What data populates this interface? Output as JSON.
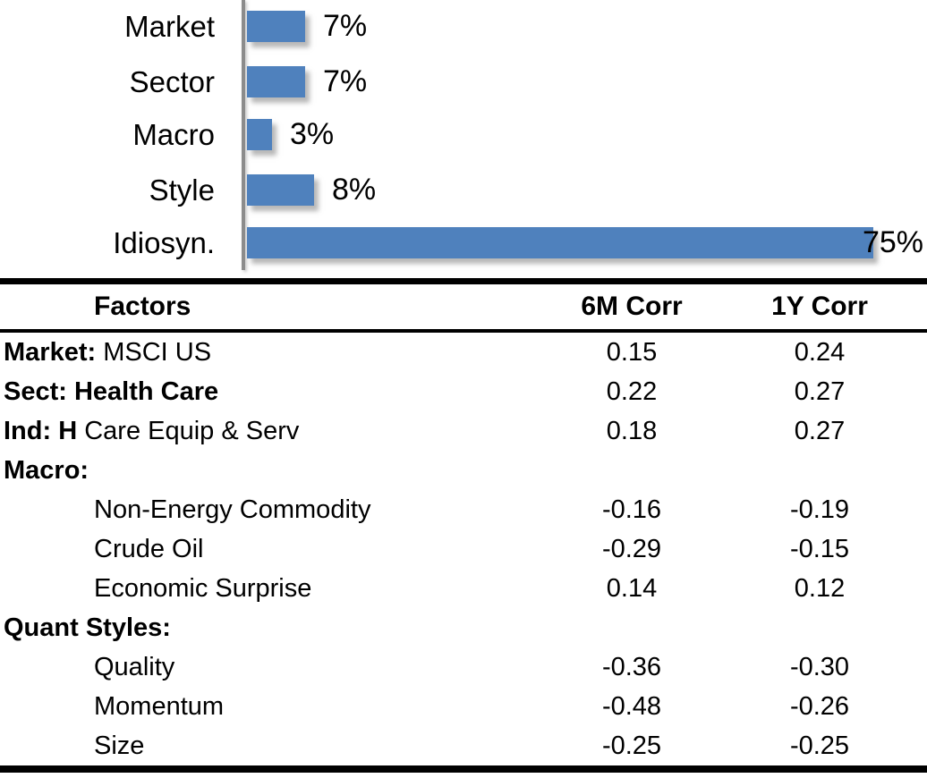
{
  "chart_data": [
    {
      "type": "bar",
      "orientation": "horizontal",
      "title": "",
      "categories": [
        "Market",
        "Sector",
        "Macro",
        "Style",
        "Idiosyn."
      ],
      "values": [
        7,
        7,
        3,
        8,
        75
      ],
      "value_labels": [
        "7%",
        "7%",
        "3%",
        "8%",
        "75%"
      ],
      "xlim": [
        0,
        80
      ],
      "grid": false,
      "legend": false,
      "bar_color": "#4F81BD",
      "axis_color": "#8C8C8C"
    },
    {
      "type": "table",
      "columns": [
        "Factors",
        "6M Corr",
        "1Y Corr"
      ],
      "rows": [
        {
          "label_bold": "Market:",
          "label_rest": " MSCI US",
          "indent": false,
          "corr_6m": "0.15",
          "corr_1y": "0.24"
        },
        {
          "label_bold": "Sect: Health Care",
          "label_rest": "",
          "indent": false,
          "corr_6m": "0.22",
          "corr_1y": "0.27"
        },
        {
          "label_bold": "Ind: H",
          "label_rest": " Care Equip & Serv",
          "indent": false,
          "corr_6m": "0.18",
          "corr_1y": "0.27"
        },
        {
          "label_bold": "Macro:",
          "label_rest": "",
          "indent": false,
          "corr_6m": "",
          "corr_1y": ""
        },
        {
          "label_bold": "",
          "label_rest": "Non-Energy Commodity",
          "indent": true,
          "corr_6m": "-0.16",
          "corr_1y": "-0.19"
        },
        {
          "label_bold": "",
          "label_rest": "Crude Oil",
          "indent": true,
          "corr_6m": "-0.29",
          "corr_1y": "-0.15"
        },
        {
          "label_bold": "",
          "label_rest": "Economic Surprise",
          "indent": true,
          "corr_6m": "0.14",
          "corr_1y": "0.12"
        },
        {
          "label_bold": "Quant Styles:",
          "label_rest": "",
          "indent": false,
          "corr_6m": "",
          "corr_1y": ""
        },
        {
          "label_bold": "",
          "label_rest": "Quality",
          "indent": true,
          "corr_6m": "-0.36",
          "corr_1y": "-0.30"
        },
        {
          "label_bold": "",
          "label_rest": "Momentum",
          "indent": true,
          "corr_6m": "-0.48",
          "corr_1y": "-0.26"
        },
        {
          "label_bold": "",
          "label_rest": "Size",
          "indent": true,
          "corr_6m": "-0.25",
          "corr_1y": "-0.25"
        }
      ]
    }
  ]
}
